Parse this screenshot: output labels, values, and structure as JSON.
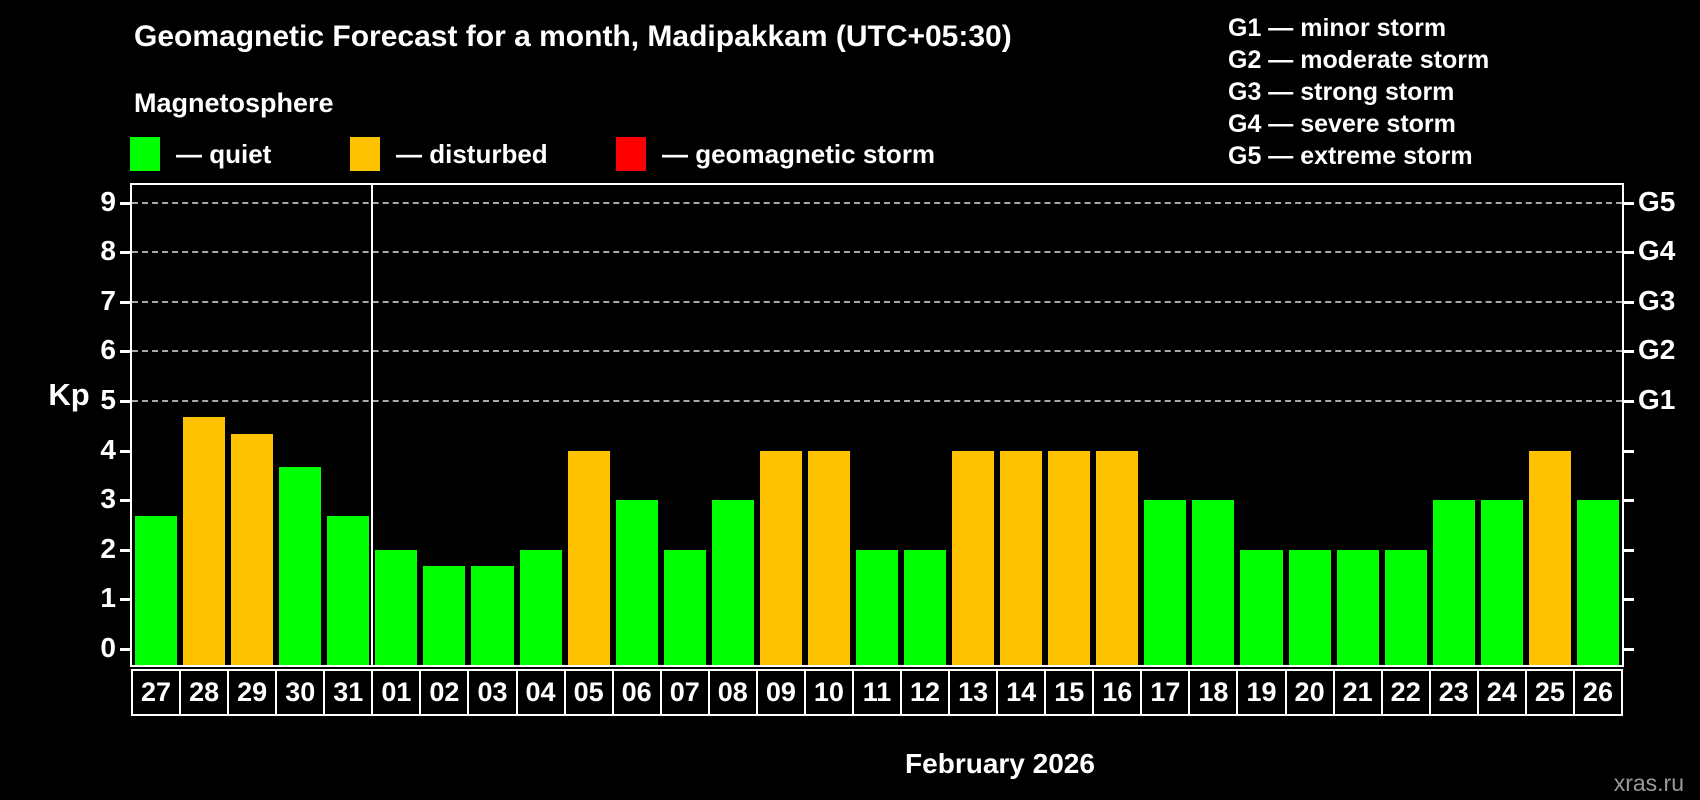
{
  "header": {
    "title": "Geomagnetic Forecast for a month, Madipakkam (UTC+05:30)",
    "subtitle": "Magnetosphere"
  },
  "legend": {
    "items": [
      {
        "label": "— quiet",
        "status": "quiet",
        "color": "#00FF00"
      },
      {
        "label": "— disturbed",
        "status": "disturbed",
        "color": "#FFC200"
      },
      {
        "label": "— geomagnetic storm",
        "status": "storm",
        "color": "#FF0000"
      }
    ]
  },
  "g_legend": {
    "lines": [
      "G1 — minor storm",
      "G2 — moderate storm",
      "G3 — strong storm",
      "G4 — severe storm",
      "G5 — extreme storm"
    ]
  },
  "watermark": "xras.ru",
  "chart_data": {
    "type": "bar",
    "title": "Geomagnetic Forecast for a month, Madipakkam (UTC+05:30)",
    "subtitle": "Magnetosphere",
    "ylabel": "Kp",
    "xlabel": "February 2026",
    "categories": [
      "27",
      "28",
      "29",
      "30",
      "31",
      "01",
      "02",
      "03",
      "04",
      "05",
      "06",
      "07",
      "08",
      "09",
      "10",
      "11",
      "12",
      "13",
      "14",
      "15",
      "16",
      "17",
      "18",
      "19",
      "20",
      "21",
      "22",
      "23",
      "24",
      "25",
      "26"
    ],
    "values": [
      2.67,
      4.67,
      4.33,
      3.67,
      2.67,
      2,
      1.67,
      1.67,
      2,
      4,
      3,
      2,
      3,
      4,
      4,
      2,
      2,
      4,
      4,
      4,
      4,
      3,
      3,
      2,
      2,
      2,
      2,
      3,
      3,
      4,
      3
    ],
    "statuses": [
      "quiet",
      "disturbed",
      "disturbed",
      "quiet",
      "quiet",
      "quiet",
      "quiet",
      "quiet",
      "quiet",
      "disturbed",
      "quiet",
      "quiet",
      "quiet",
      "disturbed",
      "disturbed",
      "quiet",
      "quiet",
      "disturbed",
      "disturbed",
      "disturbed",
      "disturbed",
      "quiet",
      "quiet",
      "quiet",
      "quiet",
      "quiet",
      "quiet",
      "quiet",
      "quiet",
      "disturbed",
      "quiet"
    ],
    "status_colors": {
      "quiet": "#00FF00",
      "disturbed": "#FFC200",
      "storm": "#FF0000"
    },
    "yticks": [
      0,
      1,
      2,
      3,
      4,
      5,
      6,
      7,
      8,
      9
    ],
    "ylim": [
      -0.33,
      9.36
    ],
    "g_levels": [
      {
        "label": "G1",
        "value": 5
      },
      {
        "label": "G2",
        "value": 6
      },
      {
        "label": "G3",
        "value": 7
      },
      {
        "label": "G4",
        "value": 8
      },
      {
        "label": "G5",
        "value": 9
      }
    ],
    "month_separator_index": 5,
    "grid": "horizontal dashed lines at G1–G5 levels only",
    "legend_position": "top"
  }
}
